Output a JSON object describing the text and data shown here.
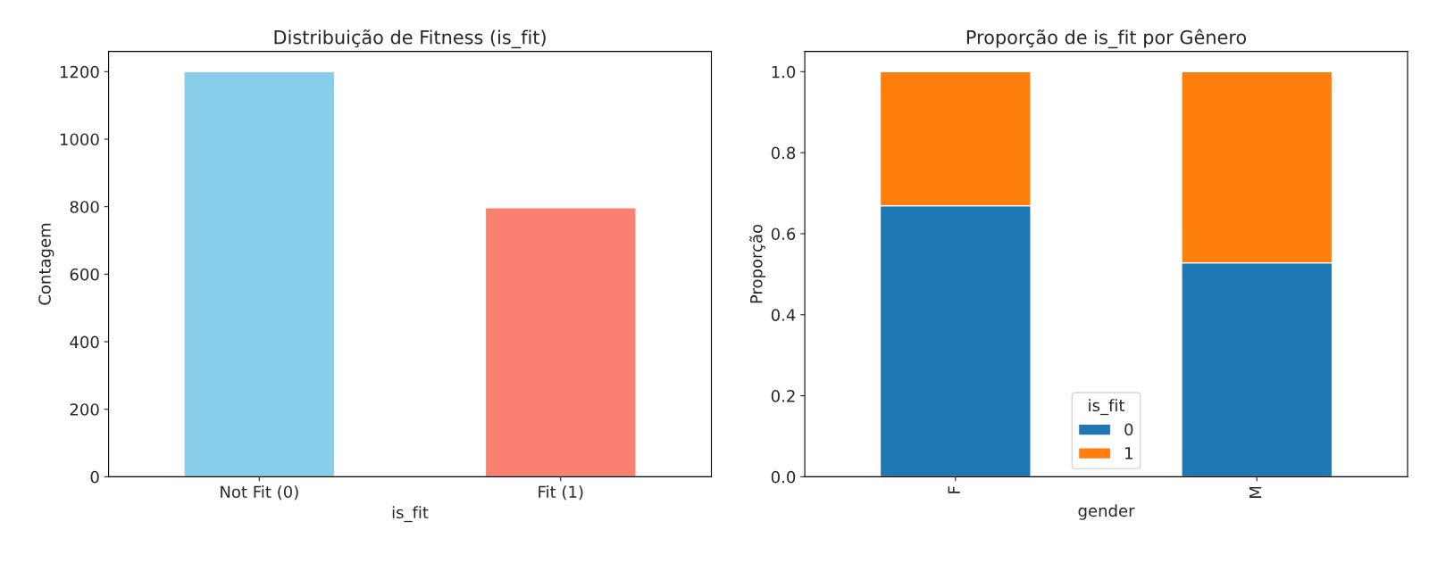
{
  "chart_data": [
    {
      "type": "bar",
      "title": "Distribuição de Fitness (is_fit)",
      "xlabel": "is_fit",
      "ylabel": "Contagem",
      "categories": [
        "Not Fit (0)",
        "Fit (1)"
      ],
      "values": [
        1200,
        797
      ],
      "colors": [
        "#87ceeb",
        "#fa8072"
      ],
      "ylim": [
        0,
        1260
      ],
      "yticks": [
        0,
        200,
        400,
        600,
        800,
        1000,
        1200
      ],
      "grid": false,
      "legend": false
    },
    {
      "type": "bar",
      "title": "Proporção de is_fit por Gênero",
      "xlabel": "gender",
      "ylabel": "Proporção",
      "legend_title": "is_fit",
      "stacked": true,
      "categories": [
        "F",
        "M"
      ],
      "series": [
        {
          "name": "0",
          "color": "#1f77b4",
          "values": [
            0.669,
            0.528
          ]
        },
        {
          "name": "1",
          "color": "#ff7f0e",
          "values": [
            0.331,
            0.472
          ]
        }
      ],
      "ylim": [
        0,
        1.05
      ],
      "yticks": [
        {
          "value": 0,
          "label": "0.0"
        },
        {
          "value": 0.2,
          "label": "0.2"
        },
        {
          "value": 0.4,
          "label": "0.4"
        },
        {
          "value": 0.6,
          "label": "0.6"
        },
        {
          "value": 0.8,
          "label": "0.8"
        },
        {
          "value": 1,
          "label": "1.0"
        }
      ],
      "grid": false,
      "legend": "bottom"
    }
  ]
}
